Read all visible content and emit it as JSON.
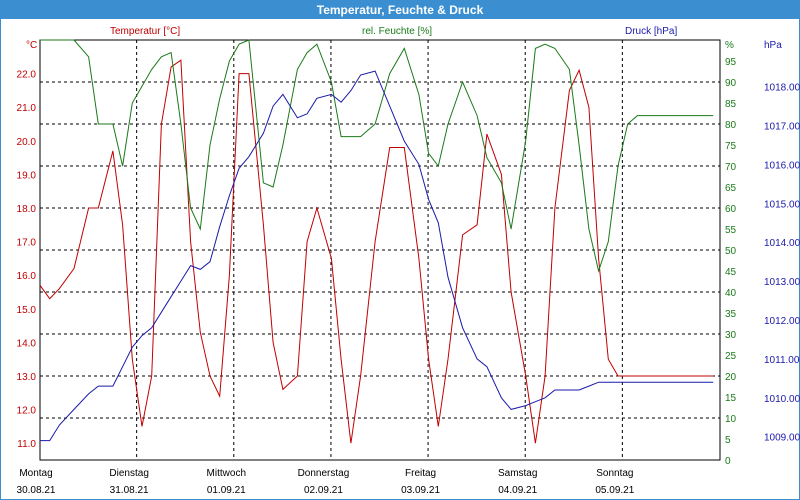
{
  "window": {
    "title": "Temperatur, Feuchte & Druck"
  },
  "colors": {
    "temperature": "#c00000",
    "humidity": "#1a7a1a",
    "pressure": "#1a1aaa",
    "titlebar": "#3b8fd0"
  },
  "chart_data": {
    "type": "line",
    "title": "Temperatur, Feuchte & Druck",
    "grid": true,
    "x_range_days": [
      0,
      7
    ],
    "x_ticks": [
      {
        "day": "Montag",
        "date": "30.08.21"
      },
      {
        "day": "Dienstag",
        "date": "31.08.21"
      },
      {
        "day": "Mittwoch",
        "date": "01.09.21"
      },
      {
        "day": "Donnerstag",
        "date": "02.09.21"
      },
      {
        "day": "Freitag",
        "date": "03.09.21"
      },
      {
        "day": "Samstag",
        "date": "04.09.21"
      },
      {
        "day": "Sonntag",
        "date": "05.09.21"
      }
    ],
    "axes": {
      "left": {
        "label": "Temperatur [°C]",
        "unit": "°C",
        "range": [
          10.5,
          23.0
        ],
        "ticks": [
          11.0,
          12.0,
          13.0,
          14.0,
          15.0,
          16.0,
          17.0,
          18.0,
          19.0,
          20.0,
          21.0,
          22.0
        ]
      },
      "right1": {
        "label": "rel. Feuchte [%]",
        "unit": "%",
        "range": [
          0,
          100
        ],
        "ticks": [
          0,
          5,
          10,
          15,
          20,
          25,
          30,
          35,
          40,
          45,
          50,
          55,
          60,
          65,
          70,
          75,
          80,
          85,
          90,
          95
        ]
      },
      "right2": {
        "label": "Druck [hPa]",
        "unit": "hPa",
        "range": [
          1008.4,
          1019.2
        ],
        "ticks": [
          1009,
          1010,
          1011,
          1012,
          1013,
          1014,
          1015,
          1016,
          1017,
          1018
        ]
      }
    },
    "series": [
      {
        "name": "Temperatur [°C]",
        "axis": "left",
        "x": [
          0,
          0.1,
          0.2,
          0.35,
          0.5,
          0.6,
          0.75,
          0.85,
          0.95,
          1.05,
          1.15,
          1.25,
          1.35,
          1.45,
          1.55,
          1.65,
          1.75,
          1.85,
          1.95,
          2.05,
          2.15,
          2.3,
          2.4,
          2.5,
          2.65,
          2.75,
          2.85,
          3.0,
          3.1,
          3.2,
          3.3,
          3.45,
          3.6,
          3.75,
          3.9,
          4.0,
          4.1,
          4.2,
          4.35,
          4.5,
          4.6,
          4.75,
          4.85,
          5.0,
          5.1,
          5.2,
          5.3,
          5.45,
          5.55,
          5.65,
          5.75,
          5.85,
          5.95,
          6.05,
          6.15,
          6.25,
          6.35,
          6.5,
          6.55,
          6.62,
          6.66,
          6.72,
          6.77,
          6.82,
          6.87,
          6.9,
          6.93
        ],
        "values": [
          15.7,
          15.3,
          15.6,
          16.2,
          18.0,
          18.0,
          19.7,
          17.5,
          13.5,
          11.5,
          13.0,
          20.5,
          22.2,
          22.4,
          17.0,
          14.3,
          13.0,
          12.4,
          16.0,
          22.0,
          22.0,
          17.5,
          14.0,
          12.6,
          13.0,
          17.0,
          18.0,
          16.5,
          13.5,
          11.0,
          13.0,
          17.0,
          19.8,
          19.8,
          16.5,
          13.5,
          11.5,
          13.5,
          17.2,
          17.5,
          20.2,
          19.0,
          15.5,
          13.0,
          11.0,
          13.0,
          18.0,
          21.5,
          22.1,
          21.0,
          16.5,
          13.5,
          13.0,
          13.0,
          13.0,
          13.0,
          13.0,
          13.0,
          13.0,
          13.0,
          13.0,
          13.0,
          13.0,
          13.0,
          13.0,
          13.0,
          13.0
        ]
      },
      {
        "name": "rel. Feuchte [%]",
        "axis": "right1",
        "x": [
          0,
          0.1,
          0.2,
          0.35,
          0.5,
          0.6,
          0.75,
          0.85,
          0.95,
          1.05,
          1.15,
          1.25,
          1.35,
          1.45,
          1.55,
          1.65,
          1.75,
          1.85,
          1.95,
          2.05,
          2.15,
          2.3,
          2.4,
          2.5,
          2.65,
          2.75,
          2.85,
          3.0,
          3.1,
          3.2,
          3.3,
          3.45,
          3.6,
          3.75,
          3.9,
          4.0,
          4.1,
          4.2,
          4.35,
          4.5,
          4.6,
          4.75,
          4.85,
          5.0,
          5.1,
          5.2,
          5.3,
          5.45,
          5.55,
          5.65,
          5.75,
          5.85,
          5.95,
          6.05,
          6.15,
          6.25,
          6.35,
          6.5,
          6.6,
          6.7,
          6.8,
          6.93
        ],
        "values": [
          100,
          100,
          100,
          100,
          96,
          80,
          80,
          70,
          85,
          89,
          93,
          96,
          97,
          80,
          60,
          55,
          75,
          86,
          95,
          99,
          100,
          66,
          65,
          75,
          93,
          97,
          99,
          90,
          77,
          77,
          77,
          80,
          92,
          98,
          87,
          73,
          70,
          80,
          90,
          82,
          72,
          66,
          55,
          76,
          98,
          99,
          98,
          93,
          75,
          55,
          45,
          52,
          70,
          80,
          82,
          82,
          82,
          82,
          82,
          82,
          82,
          82
        ]
      },
      {
        "name": "Druck [hPa]",
        "axis": "right2",
        "x": [
          0,
          0.1,
          0.2,
          0.35,
          0.5,
          0.6,
          0.75,
          0.85,
          0.95,
          1.05,
          1.15,
          1.25,
          1.35,
          1.45,
          1.55,
          1.65,
          1.75,
          1.85,
          1.95,
          2.05,
          2.15,
          2.3,
          2.4,
          2.5,
          2.65,
          2.75,
          2.85,
          3.0,
          3.1,
          3.2,
          3.3,
          3.45,
          3.6,
          3.75,
          3.9,
          4.0,
          4.1,
          4.2,
          4.35,
          4.5,
          4.6,
          4.75,
          4.85,
          5.0,
          5.1,
          5.2,
          5.3,
          5.45,
          5.55,
          5.65,
          5.75,
          5.85,
          5.95,
          6.05,
          6.15,
          6.25,
          6.35,
          6.5,
          6.6,
          6.7,
          6.8,
          6.93
        ],
        "values": [
          1008.9,
          1008.9,
          1009.3,
          1009.7,
          1010.1,
          1010.3,
          1010.3,
          1010.8,
          1011.3,
          1011.6,
          1011.8,
          1012.2,
          1012.6,
          1013.0,
          1013.4,
          1013.3,
          1013.5,
          1014.4,
          1015.2,
          1015.9,
          1016.2,
          1016.8,
          1017.5,
          1017.8,
          1017.2,
          1017.3,
          1017.7,
          1017.8,
          1017.6,
          1017.9,
          1018.3,
          1018.4,
          1017.5,
          1016.6,
          1016.0,
          1015.1,
          1014.5,
          1013.1,
          1011.8,
          1011.0,
          1010.8,
          1010.0,
          1009.7,
          1009.8,
          1009.9,
          1010.0,
          1010.2,
          1010.2,
          1010.2,
          1010.3,
          1010.4,
          1010.4,
          1010.4,
          1010.4,
          1010.4,
          1010.4,
          1010.4,
          1010.4,
          1010.4,
          1010.4,
          1010.4,
          1010.4
        ]
      }
    ]
  }
}
